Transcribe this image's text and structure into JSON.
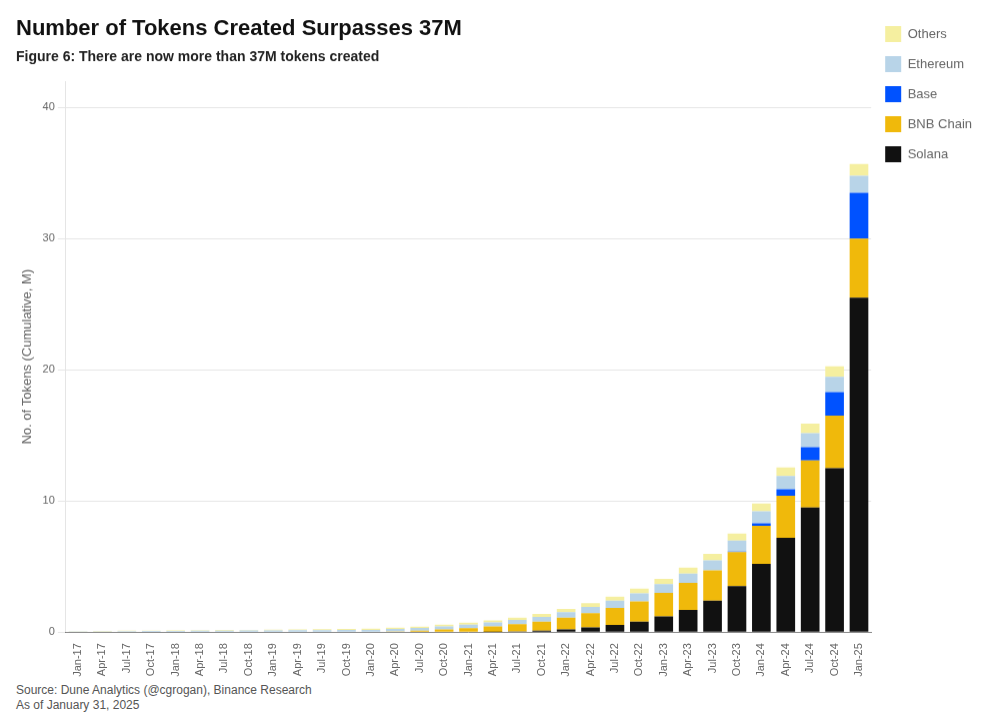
{
  "chart_data": {
    "type": "bar",
    "title": "Number of Tokens Created Surpasses 37M",
    "subtitle": "Figure 6: There are now more than 37M tokens created",
    "ylabel": "No. of Tokens (Cumulative, M)",
    "source": "Source: Dune Analytics (@cgrogan), Binance Research\nAs of January 31, 2025",
    "categories": [
      "Jan-17",
      "Apr-17",
      "Jul-17",
      "Oct-17",
      "Jan-18",
      "Apr-18",
      "Jul-18",
      "Oct-18",
      "Jan-19",
      "Apr-19",
      "Jul-19",
      "Oct-19",
      "Jan-20",
      "Apr-20",
      "Jul-20",
      "Oct-20",
      "Jan-21",
      "Apr-21",
      "Jul-21",
      "Oct-21",
      "Jan-22",
      "Apr-22",
      "Jul-22",
      "Oct-22",
      "Jan-23",
      "Apr-23",
      "Jul-23",
      "Oct-23",
      "Jan-24",
      "Apr-24",
      "Jul-24",
      "Oct-24",
      "Jan-25"
    ],
    "series": [
      {
        "name": "Solana",
        "color": "#111111",
        "values": [
          0.0,
          0.0,
          0.0,
          0.0,
          0.0,
          0.0,
          0.0,
          0.0,
          0.0,
          0.0,
          0.0,
          0.0,
          0.0,
          0.0,
          0.0,
          0.0,
          0.0,
          0.02,
          0.05,
          0.1,
          0.2,
          0.35,
          0.55,
          0.8,
          1.2,
          1.7,
          2.4,
          3.5,
          5.2,
          7.2,
          9.5,
          12.5,
          25.5
        ]
      },
      {
        "name": "BNB Chain",
        "color": "#F0B90B",
        "values": [
          0.0,
          0.0,
          0.0,
          0.0,
          0.0,
          0.0,
          0.0,
          0.0,
          0.0,
          0.0,
          0.0,
          0.0,
          0.0,
          0.05,
          0.1,
          0.2,
          0.3,
          0.42,
          0.55,
          0.7,
          0.9,
          1.1,
          1.3,
          1.55,
          1.8,
          2.05,
          2.3,
          2.6,
          2.9,
          3.2,
          3.6,
          4.0,
          4.5
        ]
      },
      {
        "name": "Base",
        "color": "#0052FF",
        "values": [
          0.0,
          0.0,
          0.0,
          0.0,
          0.0,
          0.0,
          0.0,
          0.0,
          0.0,
          0.0,
          0.0,
          0.0,
          0.0,
          0.0,
          0.0,
          0.0,
          0.0,
          0.0,
          0.0,
          0.0,
          0.0,
          0.0,
          0.0,
          0.0,
          0.0,
          0.0,
          0.0,
          0.05,
          0.2,
          0.5,
          1.0,
          1.8,
          3.5
        ]
      },
      {
        "name": "Ethereum",
        "color": "#B8D4E8",
        "values": [
          0.05,
          0.06,
          0.07,
          0.08,
          0.09,
          0.1,
          0.11,
          0.12,
          0.13,
          0.14,
          0.15,
          0.16,
          0.17,
          0.19,
          0.21,
          0.23,
          0.26,
          0.29,
          0.32,
          0.36,
          0.42,
          0.48,
          0.54,
          0.6,
          0.66,
          0.72,
          0.78,
          0.84,
          0.92,
          1.0,
          1.08,
          1.16,
          1.3
        ]
      },
      {
        "name": "Others",
        "color": "#F5EFA0",
        "values": [
          0.02,
          0.02,
          0.03,
          0.03,
          0.04,
          0.04,
          0.05,
          0.05,
          0.06,
          0.07,
          0.07,
          0.08,
          0.09,
          0.1,
          0.11,
          0.13,
          0.15,
          0.17,
          0.19,
          0.22,
          0.25,
          0.28,
          0.32,
          0.36,
          0.4,
          0.44,
          0.48,
          0.52,
          0.58,
          0.65,
          0.72,
          0.8,
          0.9
        ]
      }
    ],
    "stacked": true,
    "ylim": [
      0,
      42
    ],
    "yticks": [
      0,
      10,
      20,
      30,
      40
    ],
    "grid": true,
    "legend": "right"
  }
}
